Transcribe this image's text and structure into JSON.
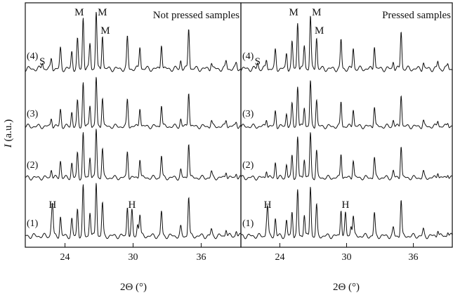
{
  "chart_data": {
    "type": "line",
    "ylabel_italic": "I",
    "ylabel_rest": " (a.u.)",
    "xlabel": "2Θ (°)",
    "xlim": [
      20.5,
      39.5
    ],
    "xticks": [
      24,
      30,
      36
    ],
    "panels": [
      {
        "title": "Not pressed samples",
        "traces": [
          {
            "label": "(4)",
            "has_sulfur": true,
            "hydrated": false
          },
          {
            "label": "(3)",
            "has_sulfur": false,
            "hydrated": false
          },
          {
            "label": "(2)",
            "has_sulfur": false,
            "hydrated": false
          },
          {
            "label": "(1)",
            "has_sulfur": false,
            "hydrated": true
          }
        ],
        "annotations": [
          {
            "text": "M",
            "x": 25.5,
            "trace": 0,
            "level": "top"
          },
          {
            "text": "M",
            "x": 26.8,
            "trace": 0,
            "level": "top"
          },
          {
            "text": "M",
            "x": 27.3,
            "trace": 0,
            "level": "mid"
          },
          {
            "text": "S",
            "x": 22.0,
            "trace": 0,
            "level": "low"
          },
          {
            "text": "H",
            "x": 22.9,
            "trace": 3,
            "level": "mid"
          },
          {
            "text": "H",
            "x": 29.9,
            "trace": 3,
            "level": "mid"
          }
        ]
      },
      {
        "title": "Pressed samples",
        "traces": [
          {
            "label": "(4)",
            "has_sulfur": true,
            "hydrated": false
          },
          {
            "label": "(3)",
            "has_sulfur": false,
            "hydrated": false
          },
          {
            "label": "(2)",
            "has_sulfur": false,
            "hydrated": false
          },
          {
            "label": "(1)",
            "has_sulfur": false,
            "hydrated": true
          }
        ],
        "annotations": [
          {
            "text": "M",
            "x": 25.5,
            "trace": 0,
            "level": "top"
          },
          {
            "text": "M",
            "x": 26.8,
            "trace": 0,
            "level": "top"
          },
          {
            "text": "M",
            "x": 27.3,
            "trace": 0,
            "level": "mid"
          },
          {
            "text": "S",
            "x": 22.0,
            "trace": 0,
            "level": "low"
          },
          {
            "text": "H",
            "x": 22.9,
            "trace": 3,
            "level": "mid"
          },
          {
            "text": "H",
            "x": 29.9,
            "trace": 3,
            "level": "mid"
          }
        ]
      }
    ],
    "peaks": [
      {
        "x": 22.0,
        "h": 0.12
      },
      {
        "x": 22.8,
        "h": 0.18
      },
      {
        "x": 23.6,
        "h": 0.35
      },
      {
        "x": 24.6,
        "h": 0.3
      },
      {
        "x": 25.1,
        "h": 0.5
      },
      {
        "x": 25.6,
        "h": 0.9
      },
      {
        "x": 26.2,
        "h": 0.45
      },
      {
        "x": 26.75,
        "h": 1.0
      },
      {
        "x": 27.3,
        "h": 0.6
      },
      {
        "x": 29.5,
        "h": 0.55
      },
      {
        "x": 30.6,
        "h": 0.4
      },
      {
        "x": 32.5,
        "h": 0.45
      },
      {
        "x": 34.2,
        "h": 0.15
      },
      {
        "x": 34.9,
        "h": 0.72
      },
      {
        "x": 36.9,
        "h": 0.12
      },
      {
        "x": 38.2,
        "h": 0.14
      },
      {
        "x": 39.1,
        "h": 0.1
      }
    ],
    "hydrate_peaks": [
      {
        "x": 22.9,
        "h": 0.55
      },
      {
        "x": 29.9,
        "h": 0.45
      },
      {
        "x": 30.4,
        "h": 0.22
      }
    ]
  }
}
